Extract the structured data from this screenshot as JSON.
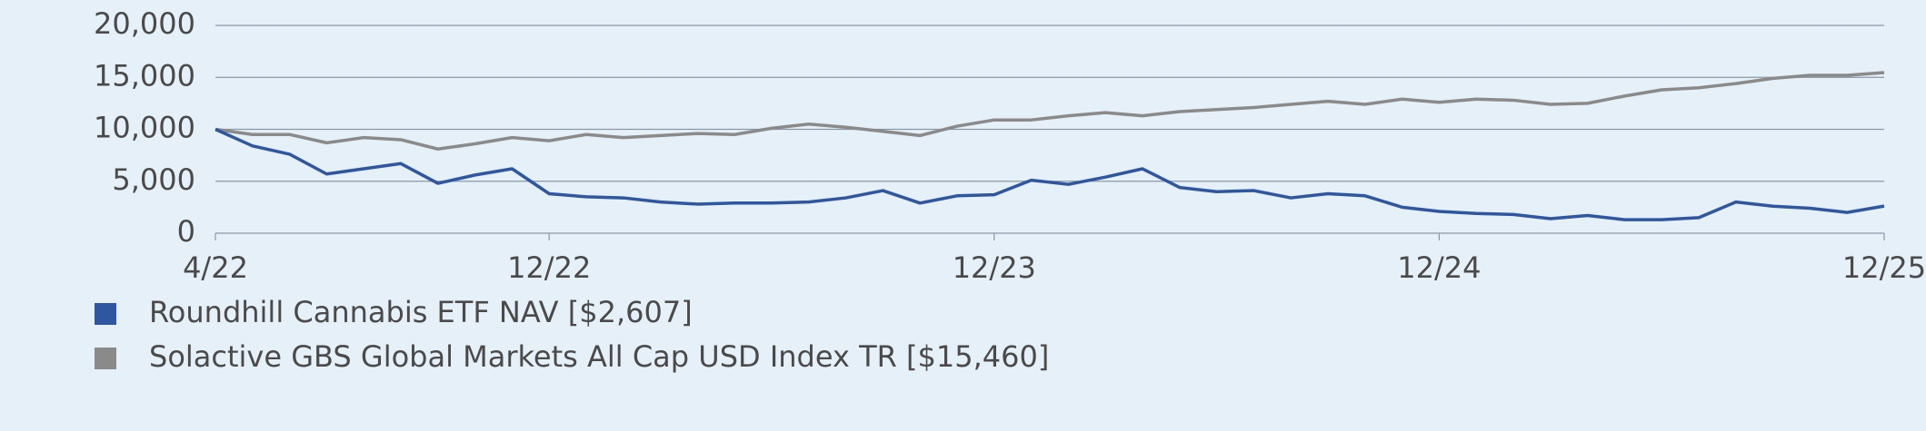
{
  "chart_data": {
    "type": "line",
    "categories": [
      "4/22",
      null,
      null,
      null,
      null,
      null,
      null,
      null,
      null,
      "12/22",
      null,
      null,
      null,
      null,
      null,
      null,
      null,
      null,
      null,
      null,
      null,
      "12/23",
      null,
      null,
      null,
      null,
      null,
      null,
      null,
      null,
      null,
      null,
      null,
      "12/24",
      null,
      null,
      null,
      null,
      null,
      null,
      null,
      null,
      null,
      null,
      null,
      "12/25"
    ],
    "series": [
      {
        "name": "Roundhill Cannabis ETF NAV [$2,607]",
        "color": "#2f56a0",
        "values": [
          10000,
          8400,
          7600,
          5700,
          6200,
          6700,
          4800,
          5600,
          6200,
          3800,
          3500,
          3400,
          3000,
          2800,
          2900,
          2900,
          3000,
          3400,
          4100,
          2900,
          3600,
          3700,
          5100,
          4700,
          5400,
          6200,
          4400,
          4000,
          4100,
          3400,
          3800,
          3600,
          2500,
          2100,
          1900,
          1800,
          1400,
          1700,
          1300,
          1300,
          1500,
          3000,
          2600,
          2400,
          2000,
          2607
        ]
      },
      {
        "name": "Solactive GBS Global Markets All Cap USD Index TR [$15,460]",
        "color": "#8a8a8a",
        "values": [
          10000,
          9500,
          9500,
          8700,
          9200,
          9000,
          8100,
          8600,
          9200,
          8900,
          9500,
          9200,
          9400,
          9600,
          9500,
          10100,
          10500,
          10200,
          9800,
          9400,
          10300,
          10900,
          10900,
          11300,
          11600,
          11300,
          11700,
          11900,
          12100,
          12400,
          12700,
          12400,
          12900,
          12600,
          12900,
          12800,
          12400,
          12500,
          13200,
          13800,
          14000,
          14400,
          14900,
          15200,
          15200,
          15460
        ]
      }
    ],
    "ylim": [
      0,
      20000
    ],
    "yticks": [
      0,
      {
        "value": 5000,
        "label": "5,000"
      },
      {
        "value": 10000,
        "label": "10,000"
      },
      {
        "value": 15000,
        "label": "15,000"
      },
      {
        "value": 20000,
        "label": "20,000"
      }
    ],
    "grid": true
  }
}
